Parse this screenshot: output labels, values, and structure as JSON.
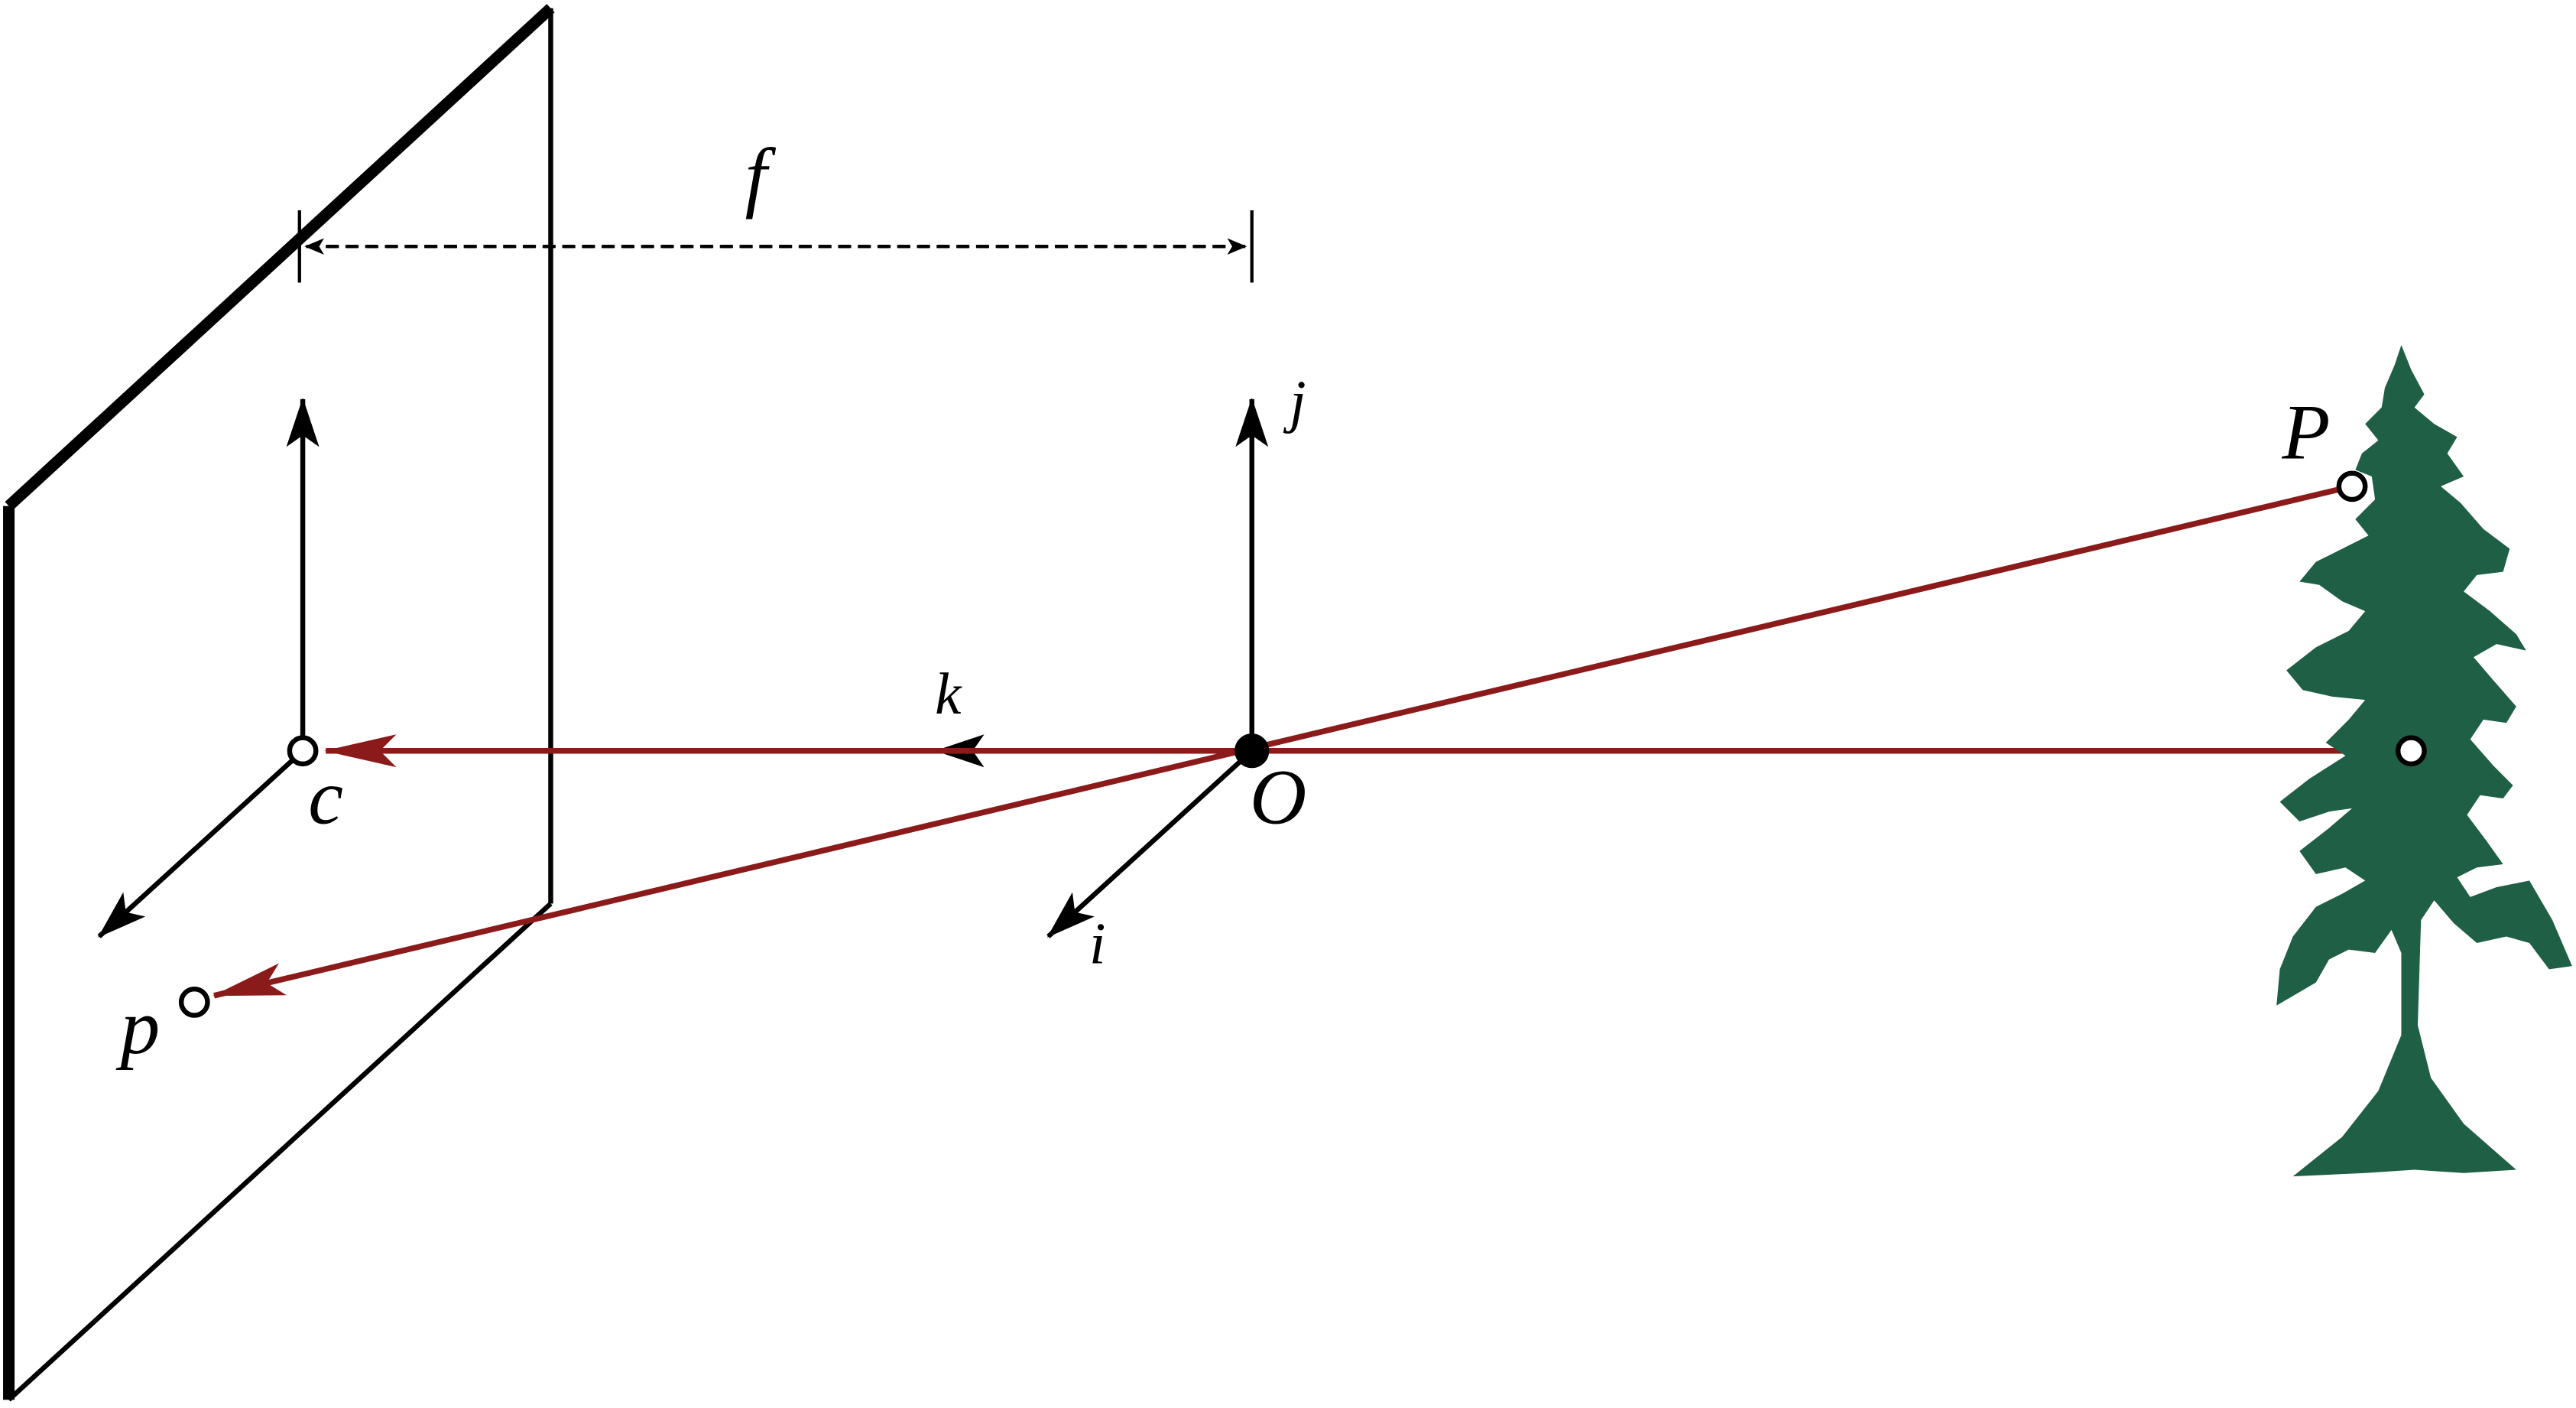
{
  "labels": {
    "focal": "f",
    "j_axis": "j",
    "k_axis": "k",
    "i_axis": "i",
    "origin": "O",
    "principal_point": "c",
    "image_point": "p",
    "world_point": "P"
  }
}
